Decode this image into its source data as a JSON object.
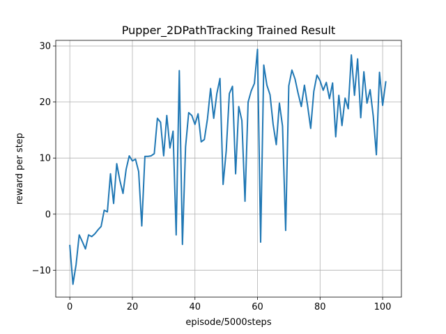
{
  "chart_data": {
    "type": "line",
    "title": "Pupper_2DPathTracking Trained Result",
    "xlabel": "episode/5000steps",
    "ylabel": "reward per step",
    "xlim": [
      -4.5,
      106
    ],
    "ylim": [
      -14.8,
      31
    ],
    "xticks": [
      0,
      20,
      40,
      60,
      80,
      100
    ],
    "yticks": [
      -10,
      0,
      10,
      20,
      30
    ],
    "grid": true,
    "line_color": "#1f77b4",
    "series": [
      {
        "values": [
          -5.6,
          -12.5,
          -9.0,
          -3.7,
          -4.9,
          -6.2,
          -3.7,
          -4.0,
          -3.5,
          -2.8,
          -2.2,
          0.7,
          0.4,
          7.2,
          1.9,
          9.0,
          6.0,
          3.7,
          8.0,
          10.4,
          9.5,
          9.8,
          7.6,
          -2.1,
          10.3,
          10.3,
          10.4,
          10.8,
          17.1,
          16.4,
          10.4,
          17.6,
          11.8,
          14.8,
          -3.7,
          25.6,
          -5.4,
          12.0,
          18.1,
          17.6,
          16.0,
          17.9,
          12.9,
          13.3,
          17.0,
          22.4,
          17.1,
          21.5,
          24.2,
          5.3,
          11.3,
          21.5,
          22.8,
          7.2,
          19.2,
          16.7,
          2.3,
          20.0,
          22.0,
          23.3,
          29.4,
          -5.0,
          26.6,
          23.0,
          21.3,
          16.0,
          12.4,
          19.8,
          15.7,
          -2.9,
          22.9,
          25.7,
          24.1,
          21.5,
          19.2,
          23.0,
          19.4,
          15.3,
          21.9,
          24.8,
          23.8,
          22.1,
          23.5,
          20.6,
          23.4,
          13.8,
          21.2,
          15.8,
          20.7,
          18.8,
          28.4,
          21.2,
          27.7,
          17.2,
          25.4,
          19.8,
          22.2,
          17.5,
          10.6,
          25.3,
          19.4,
          23.6
        ]
      }
    ]
  }
}
